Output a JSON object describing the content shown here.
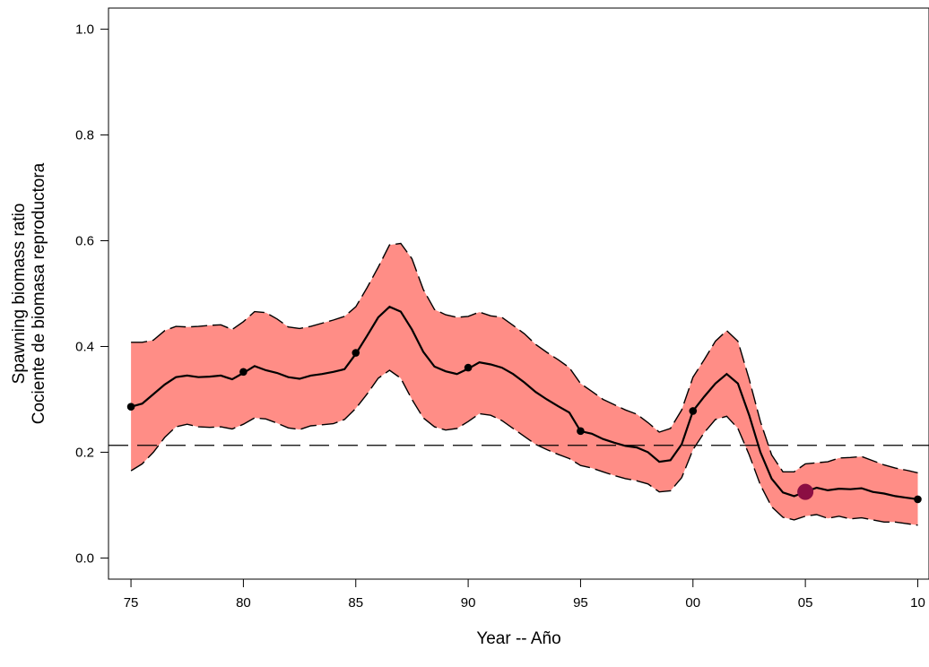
{
  "chart_data": {
    "type": "line",
    "xlabel": "Year -- Año",
    "ylabel_lines": [
      "Spawning biomass ratio",
      "Cociente de biomasa reproductora"
    ],
    "xlim": [
      1974,
      2010.5
    ],
    "ylim": [
      -0.04,
      1.04
    ],
    "x_ticks": [
      1975,
      1980,
      1985,
      1990,
      1995,
      2000,
      2005,
      2010
    ],
    "x_tick_labels": [
      "75",
      "80",
      "85",
      "90",
      "95",
      "00",
      "05",
      "10"
    ],
    "y_ticks": [
      0.0,
      0.2,
      0.4,
      0.6,
      0.8,
      1.0
    ],
    "y_tick_labels": [
      "0.0",
      "0.2",
      "0.4",
      "0.6",
      "0.8",
      "1.0"
    ],
    "reference_line": 0.213,
    "x": [
      1975,
      1975.5,
      1976,
      1976.5,
      1977,
      1977.5,
      1978,
      1978.5,
      1979,
      1979.5,
      1980,
      1980.5,
      1981,
      1981.5,
      1982,
      1982.5,
      1983,
      1983.5,
      1984,
      1984.5,
      1985,
      1985.5,
      1986,
      1986.5,
      1987,
      1987.5,
      1988,
      1988.5,
      1989,
      1989.5,
      1990,
      1990.5,
      1991,
      1991.5,
      1992,
      1992.5,
      1993,
      1993.5,
      1994,
      1994.5,
      1995,
      1995.5,
      1996,
      1996.5,
      1997,
      1997.5,
      1998,
      1998.5,
      1999,
      1999.5,
      2000,
      2000.5,
      2001,
      2001.5,
      2002,
      2002.5,
      2003,
      2003.5,
      2004,
      2004.5,
      2005,
      2005.5,
      2006,
      2006.5,
      2007,
      2007.5,
      2008,
      2008.5,
      2009,
      2009.5,
      2010
    ],
    "series": [
      {
        "role": "estimate",
        "color": "#000000",
        "values": [
          0.286,
          0.292,
          0.31,
          0.328,
          0.342,
          0.345,
          0.342,
          0.343,
          0.345,
          0.338,
          0.35,
          0.363,
          0.355,
          0.35,
          0.342,
          0.339,
          0.345,
          0.348,
          0.352,
          0.357,
          0.386,
          0.42,
          0.455,
          0.475,
          0.466,
          0.432,
          0.39,
          0.362,
          0.353,
          0.348,
          0.358,
          0.37,
          0.366,
          0.36,
          0.348,
          0.332,
          0.314,
          0.3,
          0.287,
          0.275,
          0.24,
          0.235,
          0.225,
          0.218,
          0.212,
          0.209,
          0.2,
          0.182,
          0.185,
          0.215,
          0.278,
          0.305,
          0.33,
          0.348,
          0.33,
          0.27,
          0.2,
          0.15,
          0.124,
          0.117,
          0.125,
          0.133,
          0.128,
          0.131,
          0.13,
          0.132,
          0.125,
          0.122,
          0.117,
          0.114,
          0.111
        ]
      },
      {
        "role": "upper",
        "color": "#000000",
        "values": [
          0.408,
          0.408,
          0.412,
          0.43,
          0.438,
          0.437,
          0.438,
          0.44,
          0.441,
          0.432,
          0.447,
          0.466,
          0.464,
          0.452,
          0.437,
          0.434,
          0.438,
          0.444,
          0.45,
          0.457,
          0.475,
          0.511,
          0.55,
          0.592,
          0.595,
          0.566,
          0.508,
          0.47,
          0.46,
          0.455,
          0.457,
          0.465,
          0.458,
          0.455,
          0.44,
          0.424,
          0.404,
          0.389,
          0.375,
          0.36,
          0.33,
          0.315,
          0.3,
          0.29,
          0.28,
          0.272,
          0.256,
          0.238,
          0.245,
          0.28,
          0.342,
          0.375,
          0.41,
          0.43,
          0.41,
          0.338,
          0.258,
          0.195,
          0.163,
          0.163,
          0.178,
          0.18,
          0.182,
          0.189,
          0.19,
          0.192,
          0.184,
          0.176,
          0.17,
          0.166,
          0.161
        ]
      },
      {
        "role": "lower",
        "color": "#000000",
        "values": [
          0.165,
          0.178,
          0.2,
          0.228,
          0.248,
          0.253,
          0.248,
          0.247,
          0.248,
          0.244,
          0.253,
          0.265,
          0.263,
          0.255,
          0.246,
          0.243,
          0.25,
          0.252,
          0.254,
          0.262,
          0.283,
          0.31,
          0.34,
          0.355,
          0.34,
          0.3,
          0.265,
          0.248,
          0.242,
          0.245,
          0.258,
          0.273,
          0.27,
          0.26,
          0.245,
          0.23,
          0.215,
          0.205,
          0.196,
          0.188,
          0.175,
          0.17,
          0.163,
          0.156,
          0.15,
          0.146,
          0.14,
          0.125,
          0.127,
          0.152,
          0.205,
          0.237,
          0.262,
          0.268,
          0.245,
          0.195,
          0.138,
          0.097,
          0.077,
          0.072,
          0.079,
          0.082,
          0.075,
          0.079,
          0.074,
          0.076,
          0.072,
          0.068,
          0.068,
          0.065,
          0.062
        ]
      }
    ],
    "marked_points": {
      "x": [
        1975,
        1980,
        1985,
        1990,
        1995,
        2000,
        2010
      ],
      "y": [
        0.286,
        0.352,
        0.388,
        0.36,
        0.24,
        0.278,
        0.111
      ]
    },
    "highlight_point": {
      "x": 2005,
      "y": 0.125
    },
    "colors": {
      "band_fill": "#ff8d86",
      "line": "#000000",
      "highlight": "#8b0e43",
      "reference": "#000000"
    },
    "grid": false,
    "legend": "none"
  }
}
